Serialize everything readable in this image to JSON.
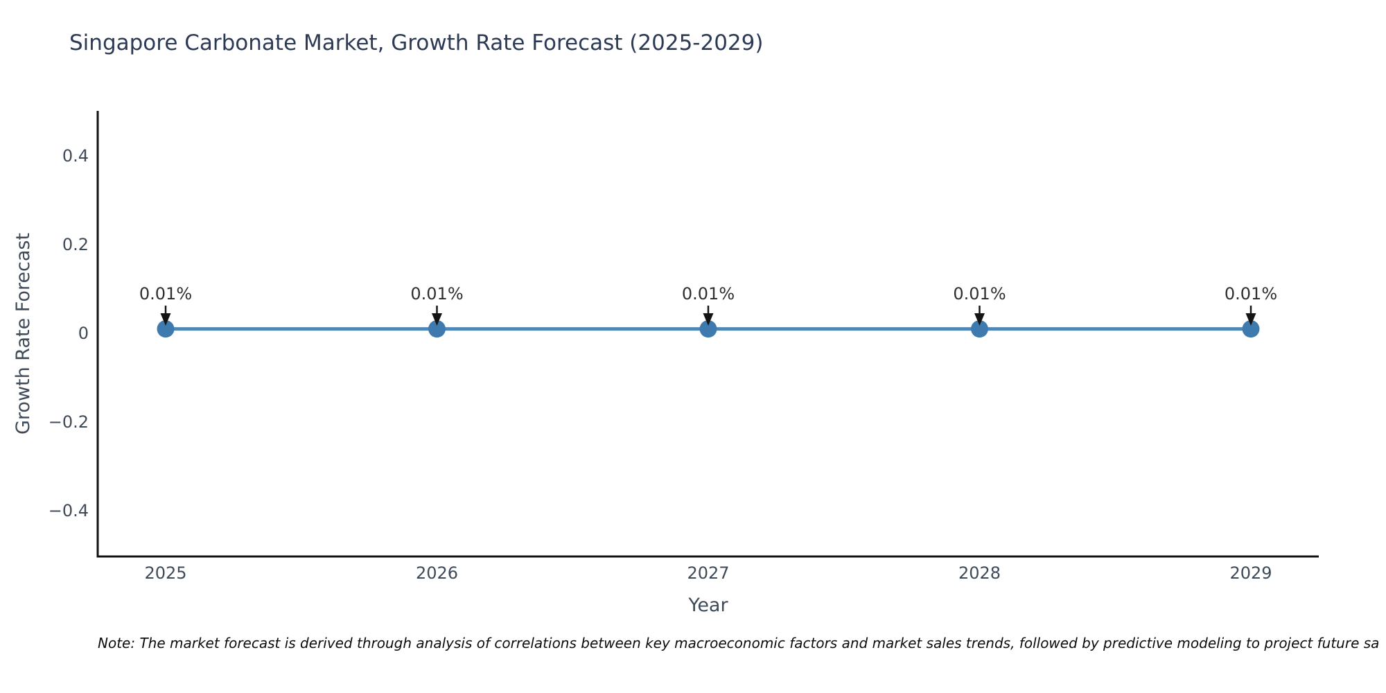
{
  "chart_data": {
    "type": "line",
    "title": "Singapore Carbonate Market, Growth Rate Forecast (2025-2029)",
    "xlabel": "Year",
    "ylabel": "Growth Rate Forecast",
    "note": "Note: The market forecast is derived through analysis of correlations between key macroeconomic factors and market sales trends, followed by predictive modeling to project future sa",
    "x": [
      2025,
      2026,
      2027,
      2028,
      2029
    ],
    "xtick_labels": [
      "2025",
      "2026",
      "2027",
      "2028",
      "2029"
    ],
    "series": [
      {
        "name": "Growth Rate Forecast",
        "values": [
          0.01,
          0.01,
          0.01,
          0.01,
          0.01
        ]
      }
    ],
    "annotations": [
      "0.01%",
      "0.01%",
      "0.01%",
      "0.01%",
      "0.01%"
    ],
    "ylim": [
      -0.5,
      0.5
    ],
    "yticks": [
      0.4,
      0.2,
      0,
      -0.2,
      -0.4
    ],
    "ytick_labels": [
      "0.4",
      "0.2",
      "0",
      "−0.2",
      "−0.4"
    ],
    "grid": false,
    "legend": false,
    "colors": {
      "line": "#4f88b8",
      "marker": "#3f7aae",
      "arrow": "#141414",
      "annotation_text": "#2e2e2e",
      "axis_spine": "#101010",
      "tick_label": "#3e4a57",
      "title": "#2c3a55",
      "note_text": "#0c0c0c"
    }
  }
}
